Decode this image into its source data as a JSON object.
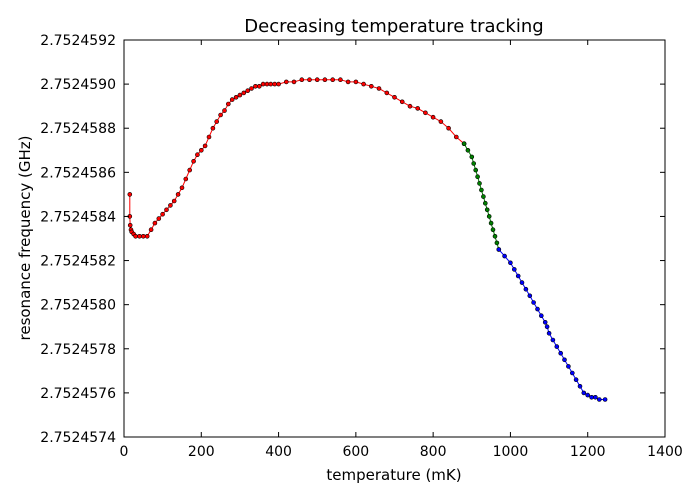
{
  "chart_data": {
    "type": "line",
    "title": "Decreasing temperature tracking",
    "xlabel": "temperature (mK)",
    "ylabel": "resonance frequency (GHz)",
    "xlim": [
      0,
      1400
    ],
    "ylim": [
      2.7524574,
      2.7524592
    ],
    "x_ticks": [
      0,
      200,
      400,
      600,
      800,
      1000,
      1200,
      1400
    ],
    "x_tick_labels": [
      "0",
      "200",
      "400",
      "600",
      "800",
      "1000",
      "1200",
      "1400"
    ],
    "y_ticks": [
      2.7524574,
      2.7524576,
      2.7524578,
      2.752458,
      2.7524582,
      2.7524584,
      2.7524586,
      2.7524588,
      2.752459,
      2.7524592
    ],
    "y_tick_labels": [
      "2.7524574",
      "2.7524576",
      "2.7524578",
      "2.7524580",
      "2.7524582",
      "2.7524584",
      "2.7524586",
      "2.7524588",
      "2.7524590",
      "2.7524592"
    ],
    "grid": false,
    "legend": "none",
    "series": [
      {
        "color": "#ff0000",
        "x": [
          15,
          15,
          16,
          18,
          20,
          25,
          30,
          40,
          50,
          60,
          70,
          80,
          90,
          100,
          110,
          120,
          130,
          140,
          150,
          160,
          170,
          180,
          190,
          200,
          210,
          220,
          230,
          240,
          250,
          260,
          270,
          280,
          290,
          300,
          310,
          320,
          330,
          340,
          350,
          360,
          370,
          380,
          390,
          400,
          420,
          440,
          460,
          480,
          500,
          520,
          540,
          560,
          580,
          600,
          620,
          640,
          660,
          680,
          700,
          720,
          740,
          760,
          780,
          800,
          820,
          840,
          860,
          880
        ],
        "y": [
          2.7524585,
          2.7524584,
          2.75245836,
          2.75245834,
          2.75245833,
          2.75245832,
          2.75245831,
          2.75245831,
          2.75245831,
          2.75245831,
          2.75245834,
          2.75245837,
          2.75245839,
          2.75245841,
          2.75245843,
          2.75245845,
          2.75245847,
          2.7524585,
          2.75245853,
          2.75245857,
          2.75245861,
          2.75245865,
          2.75245868,
          2.7524587,
          2.75245872,
          2.75245876,
          2.7524588,
          2.75245883,
          2.75245886,
          2.75245888,
          2.75245891,
          2.75245893,
          2.75245894,
          2.75245895,
          2.75245896,
          2.75245897,
          2.75245898,
          2.75245899,
          2.75245899,
          2.752459,
          2.752459,
          2.752459,
          2.752459,
          2.752459,
          2.75245901,
          2.75245901,
          2.75245902,
          2.75245902,
          2.75245902,
          2.75245902,
          2.75245902,
          2.75245902,
          2.75245901,
          2.75245901,
          2.752459,
          2.75245899,
          2.75245898,
          2.75245896,
          2.75245894,
          2.75245892,
          2.7524589,
          2.75245889,
          2.75245887,
          2.75245885,
          2.75245883,
          2.7524588,
          2.75245876,
          2.75245873
        ]
      },
      {
        "color": "#008000",
        "x": [
          880,
          890,
          900,
          905,
          910,
          915,
          920,
          925,
          930,
          935,
          940,
          945,
          950,
          955,
          960,
          965,
          970
        ],
        "y": [
          2.75245873,
          2.7524587,
          2.75245867,
          2.75245864,
          2.75245861,
          2.75245858,
          2.75245855,
          2.75245852,
          2.75245849,
          2.75245846,
          2.75245843,
          2.7524584,
          2.75245837,
          2.75245834,
          2.75245831,
          2.75245828,
          2.75245825
        ]
      },
      {
        "color": "#0000ff",
        "x": [
          970,
          985,
          1000,
          1010,
          1020,
          1030,
          1040,
          1050,
          1060,
          1070,
          1080,
          1090,
          1095,
          1100,
          1110,
          1120,
          1130,
          1140,
          1150,
          1160,
          1170,
          1180,
          1190,
          1200,
          1210,
          1220,
          1230,
          1245
        ],
        "y": [
          2.75245825,
          2.75245822,
          2.75245819,
          2.75245816,
          2.75245813,
          2.7524581,
          2.75245807,
          2.75245804,
          2.75245801,
          2.75245798,
          2.75245795,
          2.75245792,
          2.7524579,
          2.75245787,
          2.75245784,
          2.75245781,
          2.75245778,
          2.75245775,
          2.75245772,
          2.75245769,
          2.75245766,
          2.75245763,
          2.7524576,
          2.75245759,
          2.75245758,
          2.75245758,
          2.75245757,
          2.75245757
        ]
      }
    ]
  }
}
